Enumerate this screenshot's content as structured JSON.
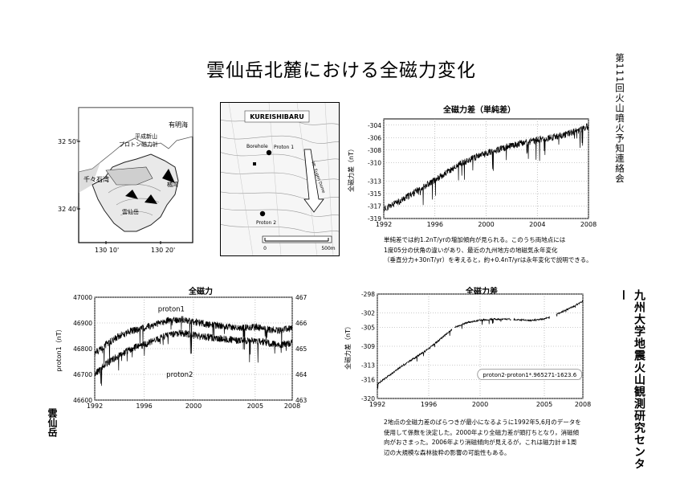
{
  "title": "雲仙岳北麓における全磁力変化",
  "side_top": "第111回火山噴火予知連絡会",
  "side_org": "九州大学地震火山観測研究センター",
  "side_location": "雲仙岳",
  "map_left": {
    "lat_labels": [
      "32 50'",
      "32 40'"
    ],
    "lon_labels": [
      "130 10'",
      "130 20'"
    ],
    "place_labels": [
      "有明海",
      "橘湾",
      "千々石湾",
      "プロトン磁力計",
      "平成新山",
      "雲仙岳"
    ]
  },
  "map_right": {
    "header": "KUREISHIBARU",
    "labels": [
      "Borehole",
      "Proton 1",
      "Proton 2",
      "Mt. Fugen Dome"
    ],
    "scale_start": "0",
    "scale_end": "500m"
  },
  "chart1": {
    "title": "全磁力差（単純差）",
    "ylabel": "全磁力差（nT）",
    "yticks": [
      "-304",
      "-306",
      "-308",
      "-310",
      "-313",
      "-315",
      "-317",
      "-319"
    ],
    "xticks": [
      "1992",
      "1996",
      "2000",
      "2004",
      "2008"
    ]
  },
  "note1": [
    "単純差では約1.2nT/yrの増加傾向が見られる。このうち両地点には",
    "1度05分の伏角の違いがあり、最近の九州地方の地磁気永年変化",
    "（垂直分力+30nT/yr）を考えると，約+0.4nT/yrは永年変化で説明できる。"
  ],
  "chart2": {
    "title": "全磁力",
    "ylabel": "proton1（nT）",
    "yticks_left": [
      "47000",
      "46900",
      "46800",
      "46700",
      "46600"
    ],
    "yticks_right": [
      "467",
      "466",
      "465",
      "464",
      "463"
    ],
    "xticks": [
      "1992",
      "1996",
      "2000",
      "2005",
      "2008"
    ],
    "series_labels": [
      "proton1",
      "proton2"
    ]
  },
  "chart3": {
    "title": "全磁力差",
    "ylabel": "全磁力差（nT）",
    "yticks": [
      "-298",
      "-302",
      "-305",
      "-309",
      "-313",
      "-316",
      "-320"
    ],
    "xticks": [
      "1992",
      "1996",
      "2000",
      "2005",
      "2008"
    ],
    "formula": "proton2-proton1*.965271-1623.6"
  },
  "note2": [
    "2地点の全磁力差のばらつきが最小になるように1992年5,6月のデータを",
    "使用して係数を決定した。2000年より全磁力差が頭打ちとなり，消磁傾",
    "向がおさまった。2006年より消磁傾向が見えるが，これは磁力計＃1周",
    "辺の大規模な森林抜粋の影響の可能性もある。"
  ],
  "chart_data": [
    {
      "type": "line",
      "title": "全磁力差（単純差）",
      "ylabel": "全磁力差（nT）",
      "xlim": [
        1992,
        2008
      ],
      "ylim": [
        -319,
        -303
      ],
      "x": [
        1992.0,
        1993.0,
        1994.0,
        1995.0,
        1996.0,
        1997.0,
        1998.0,
        1999.0,
        2000.0,
        2001.0,
        2002.0,
        2003.0,
        2004.0,
        2005.0,
        2006.0,
        2007.0,
        2008.0
      ],
      "y": [
        -317.5,
        -316.5,
        -315.3,
        -314.0,
        -312.8,
        -311.5,
        -310.2,
        -309.3,
        -308.5,
        -307.9,
        -307.3,
        -306.8,
        -306.4,
        -306.0,
        -305.6,
        -305.0,
        -304.2
      ]
    },
    {
      "type": "line",
      "title": "全磁力",
      "ylabel": "proton1（nT）",
      "xlim": [
        1992,
        2008
      ],
      "ylim": [
        46600,
        47000
      ],
      "y2lim": [
        463,
        467
      ],
      "series": [
        {
          "name": "proton1",
          "x": [
            1992,
            1993,
            1994,
            1995,
            1996,
            1997,
            1998,
            1999,
            2000,
            2001,
            2002,
            2003,
            2004,
            2005,
            2006,
            2007,
            2008
          ],
          "y": [
            46780,
            46820,
            46850,
            46870,
            46880,
            46895,
            46910,
            46915,
            46905,
            46895,
            46890,
            46885,
            46880,
            46885,
            46875,
            46870,
            46880
          ]
        },
        {
          "name": "proton2",
          "x": [
            1992,
            1993,
            1994,
            1995,
            1996,
            1997,
            1998,
            1999,
            2000,
            2001,
            2002,
            2003,
            2004,
            2005,
            2006,
            2007,
            2008
          ],
          "y": [
            46700,
            46745,
            46775,
            46800,
            46815,
            46835,
            46855,
            46862,
            46852,
            46845,
            46840,
            46835,
            46830,
            46832,
            46822,
            46815,
            46822
          ]
        }
      ]
    },
    {
      "type": "line",
      "title": "全磁力差",
      "ylabel": "全磁力差（nT）",
      "xlim": [
        1992,
        2008
      ],
      "ylim": [
        -320,
        -298
      ],
      "x": [
        1992.0,
        1993.0,
        1994.0,
        1995.0,
        1996.0,
        1997.0,
        1998.0,
        1999.0,
        2000.0,
        2001.0,
        2002.0,
        2003.0,
        2004.0,
        2005.0,
        2006.0,
        2007.0,
        2008.0
      ],
      "y": [
        -317.0,
        -315.0,
        -313.0,
        -311.3,
        -309.5,
        -307.3,
        -305.0,
        -304.0,
        -303.5,
        -303.3,
        -303.3,
        -303.4,
        -303.6,
        -303.2,
        -302.2,
        -301.0,
        -299.5
      ]
    }
  ]
}
